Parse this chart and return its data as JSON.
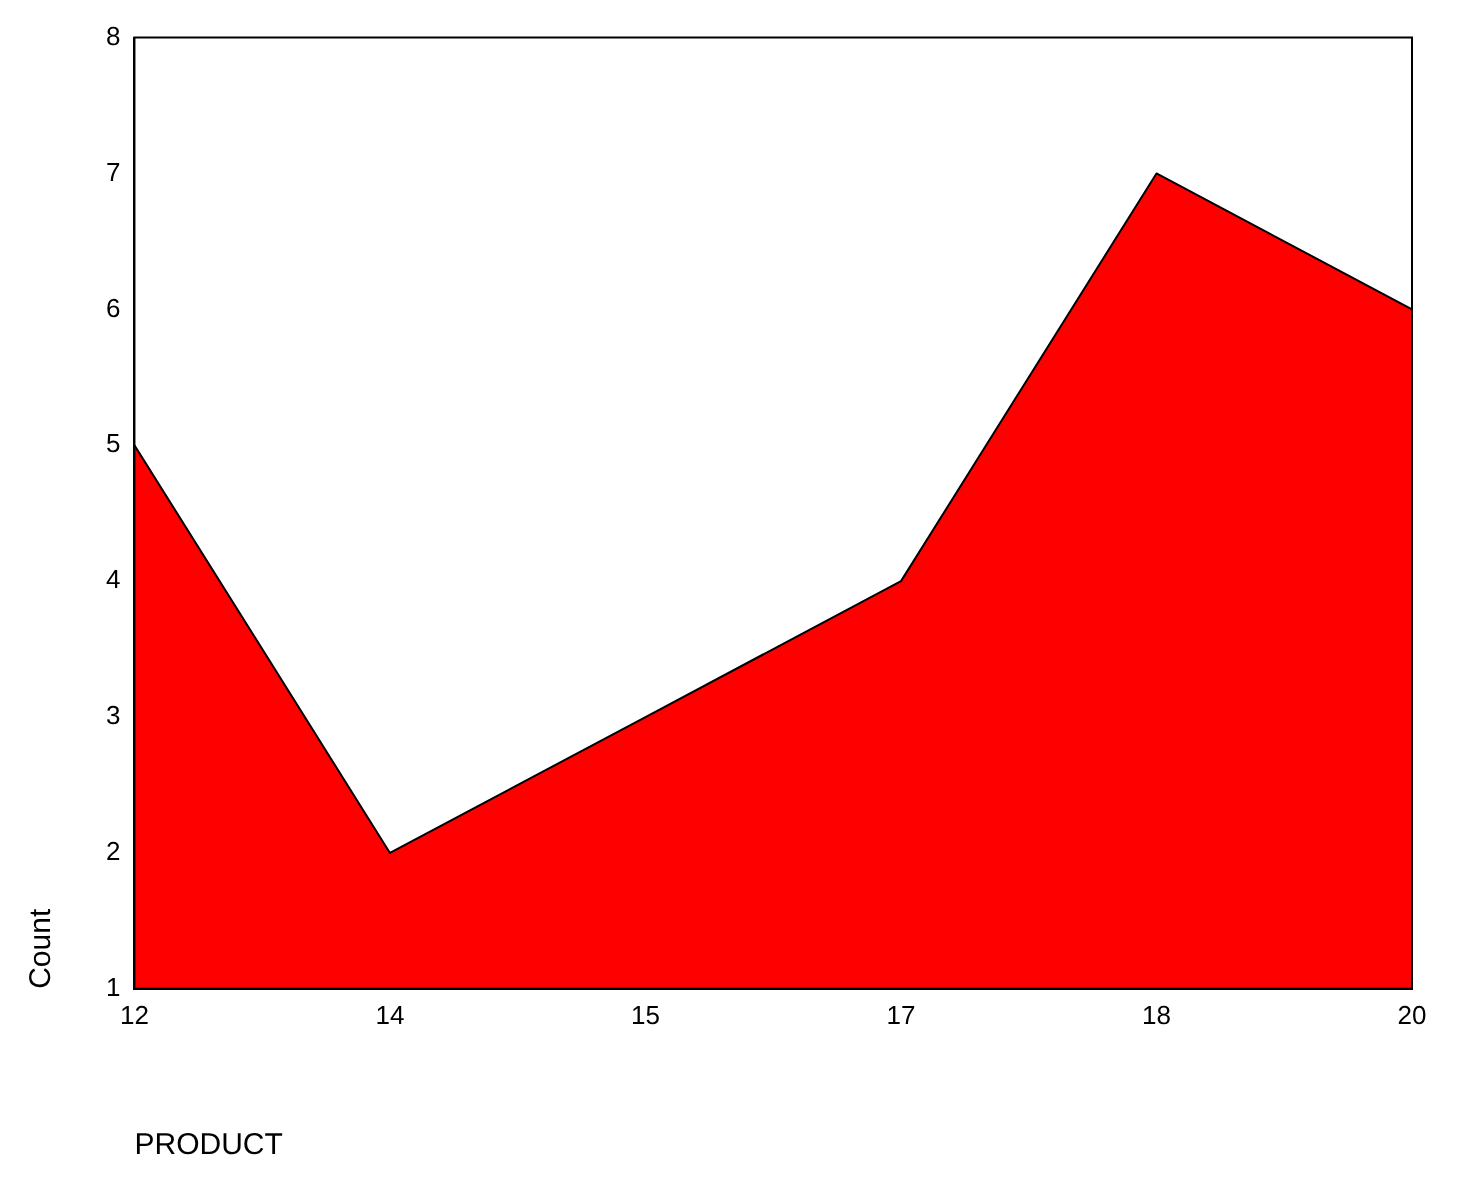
{
  "chart_data": {
    "type": "area",
    "xlabel": "PRODUCT",
    "ylabel": "Count",
    "categories": [
      "12",
      "14",
      "15",
      "17",
      "18",
      "20"
    ],
    "values": [
      5,
      2,
      3,
      4,
      7,
      6
    ],
    "color": "#ff0000",
    "ylim": [
      1,
      8
    ],
    "yticks": [
      1,
      2,
      3,
      4,
      5,
      6,
      7,
      8
    ],
    "grid": false,
    "legend": false
  }
}
